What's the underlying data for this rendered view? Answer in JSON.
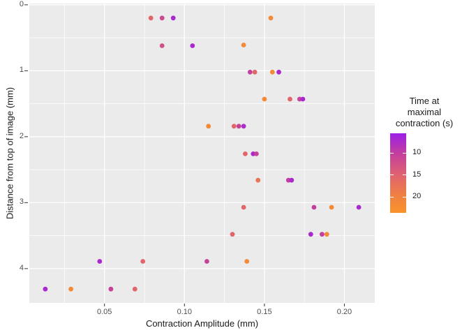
{
  "chart_data": {
    "type": "scatter",
    "title": "",
    "xlabel": "Contraction Amplitude (mm)",
    "ylabel": "Distance from top of image (mm)",
    "xlim": [
      0.003,
      0.219
    ],
    "ylim": [
      -0.02,
      4.52
    ],
    "y_reversed": true,
    "grid": "major+minor",
    "panel_bg": "#EBEBEB",
    "grid_color": "#FFFFFF",
    "tick_color": "#333333",
    "x_ticks": [
      0.05,
      0.1,
      0.15,
      0.2
    ],
    "x_tick_labels": [
      "0.05",
      "0.10",
      "0.15",
      "0.20"
    ],
    "x_minor_ticks": [
      0.025,
      0.075,
      0.125,
      0.175
    ],
    "y_ticks": [
      0,
      1,
      2,
      3,
      4
    ],
    "y_tick_labels": [
      "0",
      "1",
      "2",
      "3",
      "4"
    ],
    "y_minor_ticks": [
      0.5,
      1.5,
      2.5,
      3.5
    ],
    "points": [
      {
        "x": 0.079,
        "y": 0.2,
        "t": 15.5
      },
      {
        "x": 0.086,
        "y": 0.2,
        "t": 11.5
      },
      {
        "x": 0.093,
        "y": 0.2,
        "t": 7
      },
      {
        "x": 0.154,
        "y": 0.2,
        "t": 21.5
      },
      {
        "x": 0.086,
        "y": 0.62,
        "t": 12.5
      },
      {
        "x": 0.105,
        "y": 0.62,
        "t": 7
      },
      {
        "x": 0.137,
        "y": 0.61,
        "t": 21.5
      },
      {
        "x": 0.141,
        "y": 1.02,
        "t": 10.5
      },
      {
        "x": 0.144,
        "y": 1.02,
        "t": 15.5
      },
      {
        "x": 0.155,
        "y": 1.02,
        "t": 21.5
      },
      {
        "x": 0.159,
        "y": 1.02,
        "t": 7
      },
      {
        "x": 0.15,
        "y": 1.43,
        "t": 21.5
      },
      {
        "x": 0.166,
        "y": 1.43,
        "t": 15.5
      },
      {
        "x": 0.172,
        "y": 1.43,
        "t": 10.5
      },
      {
        "x": 0.174,
        "y": 1.43,
        "t": 7
      },
      {
        "x": 0.115,
        "y": 1.84,
        "t": 21.5
      },
      {
        "x": 0.131,
        "y": 1.84,
        "t": 15.5
      },
      {
        "x": 0.134,
        "y": 1.84,
        "t": 10.5
      },
      {
        "x": 0.137,
        "y": 1.84,
        "t": 7.5
      },
      {
        "x": 0.138,
        "y": 2.26,
        "t": 15.5
      },
      {
        "x": 0.143,
        "y": 2.26,
        "t": 7
      },
      {
        "x": 0.145,
        "y": 2.26,
        "t": 10.5
      },
      {
        "x": 0.146,
        "y": 2.66,
        "t": 18
      },
      {
        "x": 0.165,
        "y": 2.66,
        "t": 10
      },
      {
        "x": 0.167,
        "y": 2.66,
        "t": 7
      },
      {
        "x": 0.137,
        "y": 3.07,
        "t": 15.5
      },
      {
        "x": 0.181,
        "y": 3.07,
        "t": 10
      },
      {
        "x": 0.192,
        "y": 3.07,
        "t": 21.5
      },
      {
        "x": 0.209,
        "y": 3.07,
        "t": 7
      },
      {
        "x": 0.13,
        "y": 3.48,
        "t": 15.5
      },
      {
        "x": 0.179,
        "y": 3.48,
        "t": 7
      },
      {
        "x": 0.186,
        "y": 3.48,
        "t": 10
      },
      {
        "x": 0.189,
        "y": 3.48,
        "t": 21.5
      },
      {
        "x": 0.047,
        "y": 3.89,
        "t": 7
      },
      {
        "x": 0.074,
        "y": 3.89,
        "t": 15.5
      },
      {
        "x": 0.114,
        "y": 3.89,
        "t": 10.5
      },
      {
        "x": 0.139,
        "y": 3.89,
        "t": 21.5
      },
      {
        "x": 0.013,
        "y": 4.31,
        "t": 7
      },
      {
        "x": 0.029,
        "y": 4.31,
        "t": 21.5
      },
      {
        "x": 0.054,
        "y": 4.31,
        "t": 10.5
      },
      {
        "x": 0.069,
        "y": 4.31,
        "t": 15.5
      }
    ],
    "color_scale": {
      "label": "Time at\nmaximal\ncontraction (s)",
      "legend_position": "right",
      "ticks": [
        10,
        15,
        20
      ],
      "tick_labels": [
        "10",
        "15",
        "20"
      ],
      "domain": [
        5.5,
        23.6
      ],
      "stops": [
        {
          "t": 5.5,
          "color": "#9C1FE8"
        },
        {
          "t": 10,
          "color": "#C33E9E"
        },
        {
          "t": 15,
          "color": "#DF6370"
        },
        {
          "t": 20,
          "color": "#F0833F"
        },
        {
          "t": 23.6,
          "color": "#F9932B"
        }
      ]
    }
  }
}
